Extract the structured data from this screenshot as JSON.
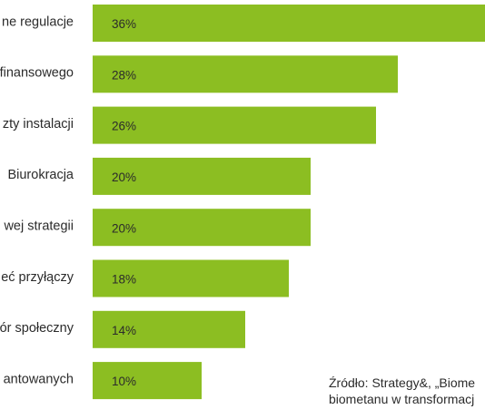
{
  "chart_data": {
    "type": "bar",
    "orientation": "horizontal",
    "categories": [
      "ne regulacje",
      "finansowego",
      "zty instalacji",
      "Biurokracja",
      "wej strategii",
      "eć przyłączy",
      "ór społeczny",
      "antowanych"
    ],
    "values": [
      36,
      28,
      26,
      20,
      20,
      18,
      14,
      10
    ],
    "value_labels": [
      "36%",
      "28%",
      "26%",
      "20%",
      "20%",
      "18%",
      "14%",
      "10%"
    ],
    "bar_color": "#8cbe22",
    "xlim": [
      0,
      36
    ]
  },
  "source": {
    "line1": "Źródło: Strategy&, „Biome",
    "line2": "biometanu w transformacj"
  }
}
